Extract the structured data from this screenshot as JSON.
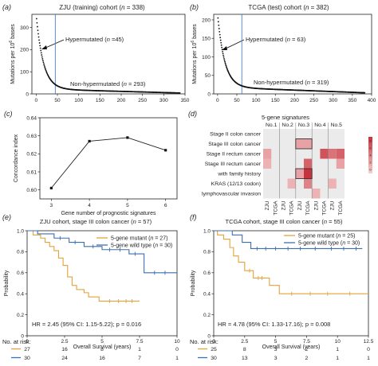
{
  "panels": {
    "a": {
      "letter": "(a)",
      "title_prefix": "ZJU (training) cohort (",
      "title_n": "n",
      "title_suffix": " = 338)"
    },
    "b": {
      "letter": "(b)",
      "title_prefix": "TCGA (test) cohort (",
      "title_n": "n",
      "title_suffix": " = 382)"
    },
    "c": {
      "letter": "(c)"
    },
    "d": {
      "letter": "(d)"
    },
    "e": {
      "letter": "(e)",
      "title_prefix": "ZJU cohort, stage III colon cancer (",
      "title_n": "n",
      "title_suffix": " = 57)"
    },
    "f": {
      "letter": "(f)",
      "title_prefix": "TCGA cohort, stage III colon cancer (",
      "title_n": "n",
      "title_suffix": " = 55)"
    }
  },
  "colors": {
    "mutant": "#E3A33A",
    "wild": "#3C6FB0",
    "cutoff_line": "#4A7FC1",
    "heat_high": "#C8323C",
    "heat_low": "#F5D2D2"
  },
  "chart_data": [
    {
      "id": "a",
      "type": "scatter",
      "ylabel": "Mutations per 10^6 bases",
      "xlim": [
        -10,
        350
      ],
      "ylim": [
        0,
        360
      ],
      "xticks": [
        0,
        50,
        100,
        150,
        200,
        250,
        300,
        350
      ],
      "yticks": [
        0,
        100,
        200,
        300
      ],
      "cutoff": 45,
      "annotations": [
        {
          "text_prefix": "Hypermutated (",
          "text_n": "n",
          "text_suffix": " =45)"
        },
        {
          "text_prefix": "Non-hypermutated (",
          "text_n": "n",
          "text_suffix": " = 293)"
        }
      ],
      "curve": {
        "count": 338,
        "start": 340,
        "decay": 0.06,
        "floor": 22,
        "tail_end": 4
      }
    },
    {
      "id": "b",
      "type": "scatter",
      "ylabel": "Mutations per 10^6 bases",
      "xlim": [
        -10,
        400
      ],
      "ylim": [
        0,
        215
      ],
      "xticks": [
        0,
        50,
        100,
        150,
        200,
        250,
        300,
        350,
        400
      ],
      "yticks": [
        0,
        50,
        100,
        150,
        200
      ],
      "cutoff": 63,
      "annotations": [
        {
          "text_prefix": "Hypermutated (",
          "text_n": "n",
          "text_suffix": " = 63)"
        },
        {
          "text_prefix": "Non-hypermutated (",
          "text_n": "n",
          "text_suffix": " = 319)"
        }
      ],
      "curve": {
        "count": 382,
        "start": 205,
        "decay": 0.055,
        "floor": 18,
        "tail_end": 3
      }
    },
    {
      "id": "c",
      "type": "line",
      "xlabel": "Gene number of prognostic signatures",
      "ylabel": "Concordance index",
      "x": [
        3,
        4,
        5,
        6
      ],
      "y": [
        0.601,
        0.627,
        0.629,
        0.622
      ],
      "xlim": [
        2.7,
        6.3
      ],
      "ylim": [
        0.595,
        0.64
      ],
      "xticks": [
        3,
        4,
        5,
        6
      ],
      "yticks": [
        0.6,
        0.61,
        0.62,
        0.63,
        0.64
      ],
      "ytick_labels": [
        "0.60",
        "0.61",
        "0.62",
        "0.63",
        "0.64"
      ]
    },
    {
      "id": "d",
      "type": "heatmap",
      "title": "5-gene signatures",
      "groups": [
        "No.1",
        "No.2",
        "No.3",
        "No.4",
        "No.5"
      ],
      "columns": [
        "ZJU",
        "TCGA",
        "ZJU",
        "TCGA",
        "ZJU",
        "TCGA",
        "ZJU",
        "TCGA",
        "ZJU",
        "TCGA"
      ],
      "rows": [
        "Stage II colon cancer",
        "Stage III colon cancer",
        "Stage II rectum cancer",
        "Stage III rectum cancer",
        "with family history",
        "KRAS (12/13 codon)",
        "lymphovascular invasion"
      ],
      "values": [
        [
          0,
          0,
          0,
          0,
          0,
          0,
          0,
          0,
          0,
          0
        ],
        [
          0,
          0,
          0,
          0,
          3,
          3,
          0,
          0,
          0,
          0
        ],
        [
          3,
          0,
          0,
          0,
          0,
          0,
          0,
          8,
          6,
          7
        ],
        [
          2,
          0,
          0,
          0,
          0,
          7,
          0,
          0,
          0,
          3
        ],
        [
          0,
          0,
          0,
          0,
          3,
          10,
          0,
          0,
          0,
          0
        ],
        [
          0,
          0,
          0,
          2,
          0,
          5,
          0,
          0,
          2,
          0
        ],
        [
          0,
          0,
          0,
          0,
          0,
          0,
          2,
          0,
          0,
          0
        ]
      ],
      "highlight": [
        {
          "row": 1,
          "col_from": 4,
          "col_to": 5
        },
        {
          "row": 4,
          "col_from": 4,
          "col_to": 5
        }
      ],
      "scale": {
        "min": 0,
        "max": 10,
        "ticks": [
          "8",
          "6",
          "4",
          "2",
          "0"
        ]
      }
    },
    {
      "id": "e",
      "type": "line",
      "xlabel": "Overall Survival (years)",
      "ylabel": "Probability",
      "xlim": [
        0,
        10
      ],
      "ylim": [
        0,
        1.0
      ],
      "xticks": [
        0,
        2.5,
        5,
        7.5,
        10
      ],
      "xtick_labels": [
        "0",
        "2.5",
        "5",
        "7.5",
        "10"
      ],
      "yticks": [
        0,
        0.2,
        0.4,
        0.6,
        0.8,
        1.0
      ],
      "ytick_labels": [
        "0",
        "0.2",
        "0.4",
        "0.6",
        "0.8",
        "1.0"
      ],
      "hr": "HR = 2.45 (95% CI: 1.15-5.22); p = 0.016",
      "series": [
        {
          "name_prefix": "5-gene mutant (",
          "name_n": "n",
          "name_suffix": " = 27)",
          "color_key": "mutant",
          "steps": [
            [
              0,
              1
            ],
            [
              0.4,
              0.96
            ],
            [
              0.9,
              0.93
            ],
            [
              1.2,
              0.89
            ],
            [
              1.5,
              0.85
            ],
            [
              1.8,
              0.81
            ],
            [
              2.1,
              0.74
            ],
            [
              2.4,
              0.67
            ],
            [
              2.7,
              0.56
            ],
            [
              3.0,
              0.48
            ],
            [
              3.3,
              0.44
            ],
            [
              3.8,
              0.41
            ],
            [
              4.1,
              0.37
            ],
            [
              4.8,
              0.33
            ],
            [
              7.5,
              0.33
            ]
          ],
          "censors": [
            5.5,
            6.1,
            6.6,
            7.0
          ]
        },
        {
          "name_prefix": "5-gene wild type (",
          "name_n": "n",
          "name_suffix": " = 30)",
          "color_key": "wild",
          "steps": [
            [
              0,
              1
            ],
            [
              0.7,
              0.97
            ],
            [
              1.8,
              0.93
            ],
            [
              2.8,
              0.89
            ],
            [
              3.8,
              0.85
            ],
            [
              5.0,
              0.82
            ],
            [
              6.8,
              0.78
            ],
            [
              7.8,
              0.6
            ],
            [
              10,
              0.6
            ]
          ],
          "censors": [
            2.2,
            3.2,
            4.4,
            5.5,
            6.2,
            7.2,
            8.5,
            9.2
          ]
        }
      ],
      "risk_title": "No. at risk:",
      "risk": [
        [
          "27",
          "16",
          "8",
          "1",
          "0"
        ],
        [
          "30",
          "24",
          "16",
          "7",
          "1"
        ]
      ]
    },
    {
      "id": "f",
      "type": "line",
      "xlabel": "Overall Survival (years)",
      "ylabel": "Probability",
      "xlim": [
        0,
        12.5
      ],
      "ylim": [
        0,
        1.0
      ],
      "xticks": [
        0,
        2.5,
        5,
        7.5,
        10,
        12.5
      ],
      "xtick_labels": [
        "0",
        "2.5",
        "5",
        "7.5",
        "10",
        "12.5"
      ],
      "yticks": [
        0,
        0.2,
        0.4,
        0.6,
        0.8,
        1.0
      ],
      "ytick_labels": [
        "0",
        "0.2",
        "0.4",
        "0.6",
        "0.8",
        "1.0"
      ],
      "hr": "HR = 4.78 (95% CI: 1.33-17.16); p = 0.008",
      "series": [
        {
          "name_prefix": "5-gene mutant (",
          "name_n": "n",
          "name_suffix": " = 25)",
          "color_key": "mutant",
          "steps": [
            [
              0,
              1
            ],
            [
              0.3,
              0.96
            ],
            [
              0.8,
              0.92
            ],
            [
              1.3,
              0.84
            ],
            [
              1.6,
              0.76
            ],
            [
              2.0,
              0.7
            ],
            [
              2.5,
              0.62
            ],
            [
              3.2,
              0.55
            ],
            [
              4.5,
              0.48
            ],
            [
              5.3,
              0.4
            ],
            [
              12.5,
              0.4
            ]
          ],
          "censors": [
            2.9,
            3.6,
            3.9,
            6.3,
            7.8,
            9.2,
            11.0
          ]
        },
        {
          "name_prefix": "5-gene wild type (",
          "name_n": "n",
          "name_suffix": " = 30)",
          "color_key": "wild",
          "steps": [
            [
              0,
              1
            ],
            [
              1.5,
              0.96
            ],
            [
              2.3,
              0.89
            ],
            [
              3.0,
              0.83
            ],
            [
              12.0,
              0.83
            ]
          ],
          "censors": [
            3.5,
            4.2,
            5.0,
            6.0,
            7.0,
            8.2,
            9.5,
            10.5,
            11.5
          ]
        }
      ],
      "risk_title": "No. at risk:",
      "risk": [
        [
          "25",
          "8",
          "3",
          "2",
          "1",
          "0"
        ],
        [
          "30",
          "13",
          "3",
          "2",
          "1",
          "1"
        ]
      ]
    }
  ]
}
